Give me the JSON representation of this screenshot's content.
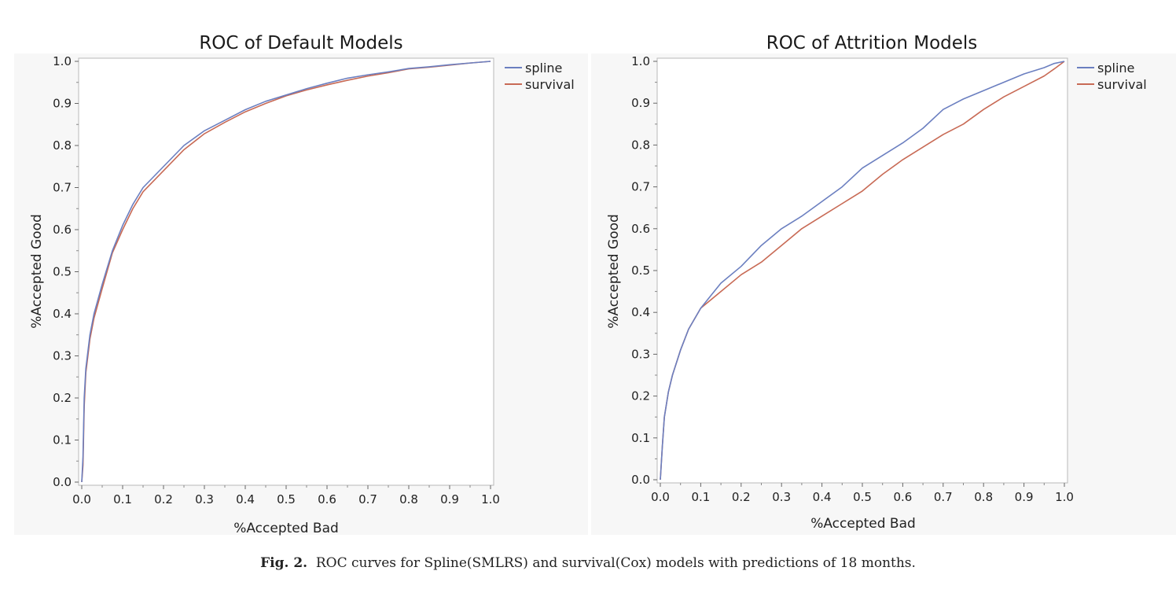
{
  "caption": {
    "label": "Fig. 2.",
    "text": "ROC curves for Spline(SMLRS) and survival(Cox) models with predictions of 18 months."
  },
  "chart_data": [
    {
      "type": "line",
      "title": "ROC of Default Models",
      "xlabel": "%Accepted Bad",
      "ylabel": "%Accepted Good",
      "xlim": [
        0,
        1
      ],
      "ylim": [
        0,
        1
      ],
      "x_ticks": [
        "0.0",
        "0.1",
        "0.2",
        "0.3",
        "0.4",
        "0.5",
        "0.6",
        "0.7",
        "0.8",
        "0.9",
        "1.0"
      ],
      "y_ticks": [
        "0.0",
        "0.1",
        "0.2",
        "0.3",
        "0.4",
        "0.5",
        "0.6",
        "0.7",
        "0.8",
        "0.9",
        "1.0"
      ],
      "grid": false,
      "legend": "top-right",
      "series": [
        {
          "name": "spline",
          "color": "#6b7fc0",
          "x": [
            0,
            0.003,
            0.006,
            0.01,
            0.02,
            0.03,
            0.05,
            0.075,
            0.1,
            0.125,
            0.15,
            0.2,
            0.25,
            0.3,
            0.35,
            0.4,
            0.45,
            0.5,
            0.55,
            0.6,
            0.65,
            0.7,
            0.75,
            0.8,
            0.85,
            0.9,
            0.95,
            1.0
          ],
          "y": [
            0,
            0.06,
            0.2,
            0.27,
            0.35,
            0.4,
            0.47,
            0.55,
            0.61,
            0.66,
            0.7,
            0.75,
            0.8,
            0.835,
            0.86,
            0.885,
            0.905,
            0.92,
            0.935,
            0.948,
            0.96,
            0.968,
            0.975,
            0.983,
            0.987,
            0.992,
            0.996,
            1.0
          ]
        },
        {
          "name": "survival",
          "color": "#c86a55",
          "x": [
            0,
            0.003,
            0.006,
            0.01,
            0.02,
            0.03,
            0.05,
            0.075,
            0.1,
            0.125,
            0.15,
            0.2,
            0.25,
            0.3,
            0.35,
            0.4,
            0.45,
            0.5,
            0.55,
            0.6,
            0.65,
            0.7,
            0.75,
            0.8,
            0.85,
            0.9,
            0.95,
            1.0
          ],
          "y": [
            0,
            0.04,
            0.18,
            0.26,
            0.34,
            0.39,
            0.46,
            0.545,
            0.6,
            0.65,
            0.69,
            0.74,
            0.79,
            0.828,
            0.855,
            0.88,
            0.9,
            0.918,
            0.932,
            0.944,
            0.955,
            0.965,
            0.973,
            0.982,
            0.986,
            0.991,
            0.996,
            1.0
          ]
        }
      ]
    },
    {
      "type": "line",
      "title": "ROC of Attrition Models",
      "xlabel": "%Accepted Bad",
      "ylabel": "%Accepted Good",
      "xlim": [
        0,
        1
      ],
      "ylim": [
        0,
        1
      ],
      "x_ticks": [
        "0.0",
        "0.1",
        "0.2",
        "0.3",
        "0.4",
        "0.5",
        "0.6",
        "0.7",
        "0.8",
        "0.9",
        "1.0"
      ],
      "y_ticks": [
        "0.0",
        "0.1",
        "0.2",
        "0.3",
        "0.4",
        "0.5",
        "0.6",
        "0.7",
        "0.8",
        "0.9",
        "1.0"
      ],
      "grid": false,
      "legend": "top-right",
      "series": [
        {
          "name": "spline",
          "color": "#6b7fc0",
          "x": [
            0,
            0.005,
            0.01,
            0.02,
            0.03,
            0.05,
            0.07,
            0.1,
            0.125,
            0.15,
            0.2,
            0.25,
            0.3,
            0.35,
            0.4,
            0.45,
            0.5,
            0.55,
            0.6,
            0.65,
            0.7,
            0.75,
            0.8,
            0.85,
            0.9,
            0.95,
            0.975,
            1.0
          ],
          "y": [
            0,
            0.08,
            0.15,
            0.21,
            0.25,
            0.31,
            0.36,
            0.41,
            0.44,
            0.47,
            0.51,
            0.56,
            0.6,
            0.63,
            0.665,
            0.7,
            0.745,
            0.775,
            0.805,
            0.84,
            0.885,
            0.91,
            0.93,
            0.95,
            0.97,
            0.985,
            0.995,
            1.0
          ]
        },
        {
          "name": "survival",
          "color": "#c86a55",
          "x": [
            0,
            0.005,
            0.01,
            0.02,
            0.03,
            0.05,
            0.07,
            0.1,
            0.125,
            0.15,
            0.2,
            0.25,
            0.3,
            0.35,
            0.4,
            0.45,
            0.5,
            0.55,
            0.6,
            0.65,
            0.7,
            0.75,
            0.8,
            0.85,
            0.9,
            0.95,
            0.975,
            1.0
          ],
          "y": [
            0,
            0.08,
            0.15,
            0.21,
            0.25,
            0.31,
            0.36,
            0.41,
            0.43,
            0.45,
            0.49,
            0.52,
            0.56,
            0.6,
            0.63,
            0.66,
            0.69,
            0.73,
            0.765,
            0.795,
            0.825,
            0.85,
            0.885,
            0.915,
            0.94,
            0.965,
            0.982,
            1.0
          ]
        }
      ]
    }
  ]
}
